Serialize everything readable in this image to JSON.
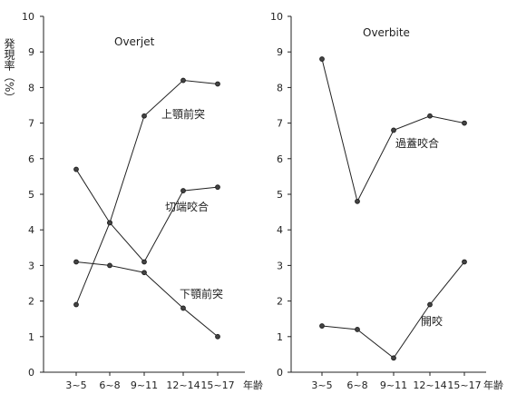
{
  "chart_data": [
    {
      "type": "line",
      "title": "Overjet",
      "ylabel": "発現率（%）",
      "xlabel": "年齢",
      "categories": [
        "3~5",
        "6~8",
        "9~11",
        "12~14",
        "15~17"
      ],
      "ylim": [
        0,
        10
      ],
      "yticks": [
        "0",
        "1",
        "2",
        "3",
        "4",
        "5",
        "6",
        "7",
        "8",
        "9",
        "10"
      ],
      "grid": false,
      "series": [
        {
          "name": "上顎前突",
          "values": [
            1.9,
            4.2,
            7.2,
            8.2,
            8.1
          ]
        },
        {
          "name": "切端咬合",
          "values": [
            5.7,
            4.2,
            3.1,
            5.1,
            5.2
          ]
        },
        {
          "name": "下顎前突",
          "values": [
            3.1,
            3.0,
            2.8,
            1.8,
            1.0
          ]
        }
      ]
    },
    {
      "type": "line",
      "title": "Overbite",
      "ylabel": "",
      "xlabel": "年齢",
      "categories": [
        "3~5",
        "6~8",
        "9~11",
        "12~14",
        "15~17"
      ],
      "ylim": [
        0,
        10
      ],
      "yticks": [
        "0",
        "1",
        "2",
        "3",
        "4",
        "5",
        "6",
        "7",
        "8",
        "9",
        "10"
      ],
      "grid": false,
      "series": [
        {
          "name": "過蓋咬合",
          "values": [
            8.8,
            4.8,
            6.8,
            7.2,
            7.0
          ]
        },
        {
          "name": "開咬",
          "values": [
            1.3,
            1.2,
            0.4,
            1.9,
            3.1
          ]
        }
      ]
    }
  ]
}
